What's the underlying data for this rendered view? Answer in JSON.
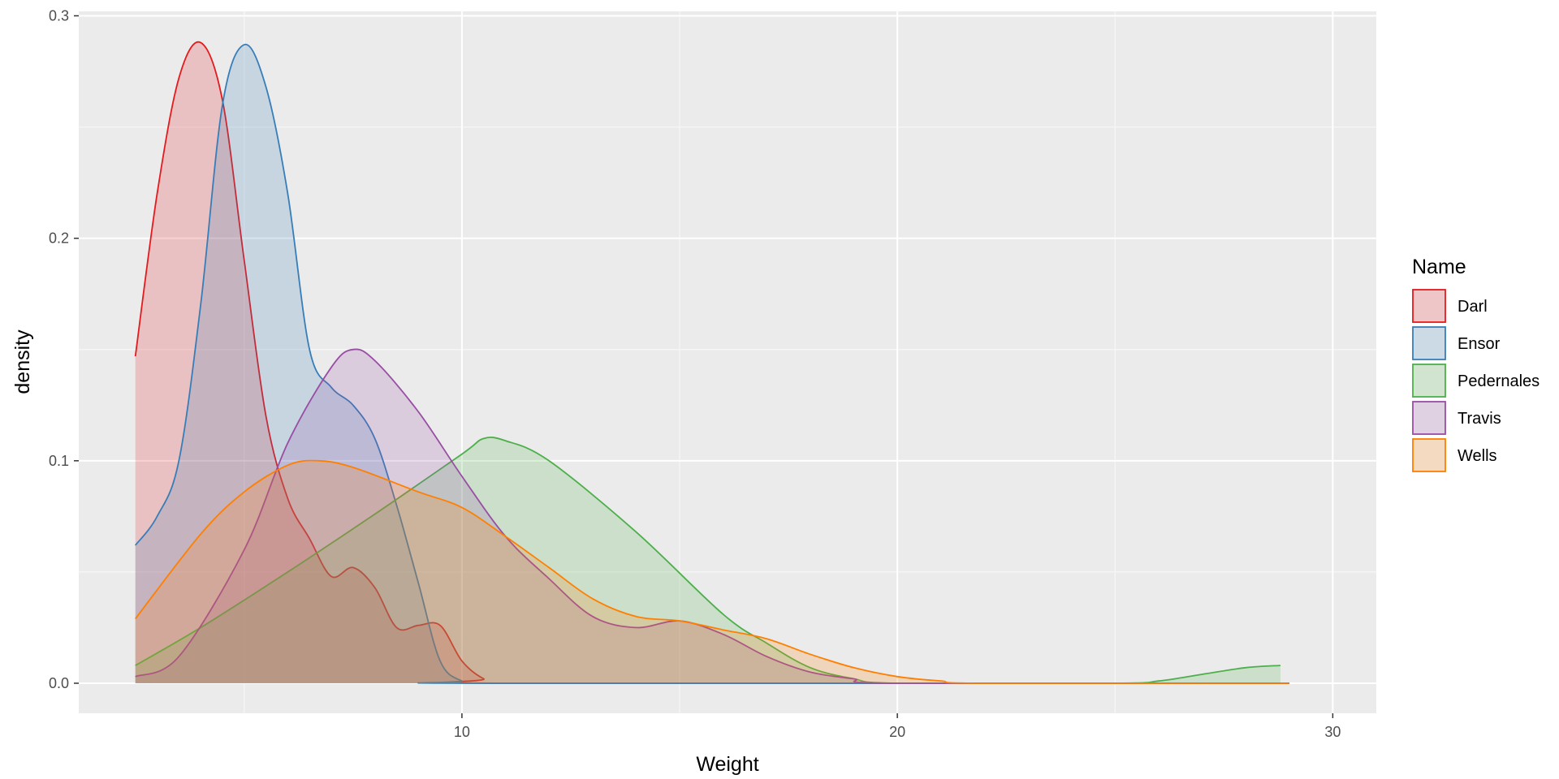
{
  "chart_data": {
    "type": "area",
    "title": "",
    "xlabel": "Weight",
    "ylabel": "density",
    "xlim": [
      1.2,
      31
    ],
    "ylim": [
      -0.0135,
      0.302
    ],
    "x_ticks": [
      10,
      20,
      30
    ],
    "x_tick_labels": [
      "10",
      "20",
      "30"
    ],
    "y_ticks": [
      0.0,
      0.1,
      0.2,
      0.3
    ],
    "y_tick_labels": [
      "0.0",
      "0.1",
      "0.2",
      "0.3"
    ],
    "grid": true,
    "legend": {
      "title": "Name",
      "placement": "right"
    },
    "series": [
      {
        "name": "Darl",
        "color": "#e41a1c",
        "points": [
          [
            2.5,
            0.147
          ],
          [
            3.0,
            0.22
          ],
          [
            3.5,
            0.272
          ],
          [
            4.0,
            0.288
          ],
          [
            4.5,
            0.262
          ],
          [
            5.0,
            0.19
          ],
          [
            5.5,
            0.12
          ],
          [
            6.0,
            0.083
          ],
          [
            6.5,
            0.065
          ],
          [
            7.0,
            0.048
          ],
          [
            7.5,
            0.052
          ],
          [
            8.0,
            0.043
          ],
          [
            8.5,
            0.025
          ],
          [
            9.0,
            0.026
          ],
          [
            9.5,
            0.026
          ],
          [
            10.0,
            0.01
          ],
          [
            10.5,
            0.002
          ],
          [
            11.0,
            0.0
          ],
          [
            29.0,
            0.0
          ]
        ]
      },
      {
        "name": "Ensor",
        "color": "#377eb8",
        "points": [
          [
            2.5,
            0.062
          ],
          [
            3.0,
            0.075
          ],
          [
            3.5,
            0.1
          ],
          [
            4.0,
            0.17
          ],
          [
            4.5,
            0.26
          ],
          [
            5.0,
            0.287
          ],
          [
            5.5,
            0.268
          ],
          [
            6.0,
            0.22
          ],
          [
            6.5,
            0.15
          ],
          [
            7.0,
            0.133
          ],
          [
            7.5,
            0.125
          ],
          [
            8.0,
            0.11
          ],
          [
            8.5,
            0.08
          ],
          [
            9.0,
            0.045
          ],
          [
            9.5,
            0.01
          ],
          [
            10.0,
            0.001
          ],
          [
            10.5,
            0.0
          ],
          [
            29.0,
            0.0
          ]
        ]
      },
      {
        "name": "Pedernales",
        "color": "#4daf4a",
        "points": [
          [
            2.5,
            0.008
          ],
          [
            4.0,
            0.025
          ],
          [
            6.0,
            0.05
          ],
          [
            8.0,
            0.076
          ],
          [
            10.0,
            0.103
          ],
          [
            10.5,
            0.11
          ],
          [
            11.0,
            0.109
          ],
          [
            12.0,
            0.1
          ],
          [
            14.0,
            0.068
          ],
          [
            16.0,
            0.031
          ],
          [
            17.0,
            0.018
          ],
          [
            18.0,
            0.007
          ],
          [
            19.0,
            0.002
          ],
          [
            20.0,
            0.0
          ],
          [
            25.0,
            0.0
          ],
          [
            26.0,
            0.001
          ],
          [
            27.0,
            0.004
          ],
          [
            28.0,
            0.007
          ],
          [
            28.8,
            0.008
          ]
        ]
      },
      {
        "name": "Travis",
        "color": "#984ea3",
        "points": [
          [
            2.5,
            0.003
          ],
          [
            3.5,
            0.012
          ],
          [
            5.0,
            0.06
          ],
          [
            6.0,
            0.108
          ],
          [
            7.0,
            0.142
          ],
          [
            7.5,
            0.15
          ],
          [
            8.0,
            0.145
          ],
          [
            9.0,
            0.122
          ],
          [
            10.0,
            0.093
          ],
          [
            11.0,
            0.066
          ],
          [
            12.0,
            0.047
          ],
          [
            13.0,
            0.03
          ],
          [
            14.0,
            0.025
          ],
          [
            15.0,
            0.028
          ],
          [
            16.0,
            0.022
          ],
          [
            17.0,
            0.012
          ],
          [
            18.0,
            0.005
          ],
          [
            19.0,
            0.002
          ],
          [
            20.0,
            0.0
          ],
          [
            29.0,
            0.0
          ]
        ]
      },
      {
        "name": "Wells",
        "color": "#ff7f00",
        "points": [
          [
            2.5,
            0.029
          ],
          [
            4.0,
            0.067
          ],
          [
            5.0,
            0.086
          ],
          [
            6.0,
            0.098
          ],
          [
            6.7,
            0.1
          ],
          [
            7.5,
            0.097
          ],
          [
            9.0,
            0.086
          ],
          [
            10.0,
            0.079
          ],
          [
            11.0,
            0.066
          ],
          [
            12.0,
            0.052
          ],
          [
            13.0,
            0.038
          ],
          [
            14.0,
            0.03
          ],
          [
            15.0,
            0.028
          ],
          [
            16.0,
            0.024
          ],
          [
            17.0,
            0.02
          ],
          [
            18.0,
            0.013
          ],
          [
            19.0,
            0.007
          ],
          [
            20.0,
            0.003
          ],
          [
            21.0,
            0.001
          ],
          [
            22.0,
            0.0
          ],
          [
            29.0,
            0.0
          ]
        ]
      }
    ]
  }
}
